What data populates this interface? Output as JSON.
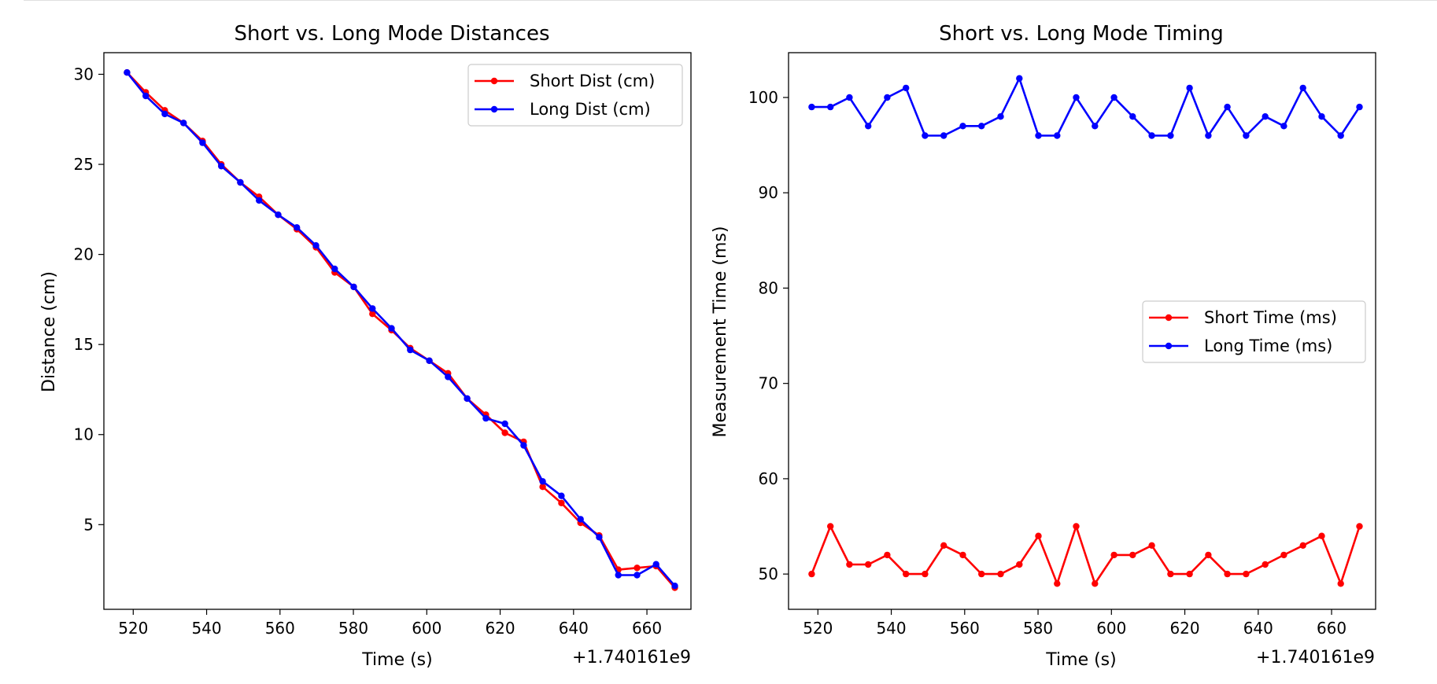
{
  "chart_data": [
    {
      "type": "line",
      "title": "Short vs. Long Mode Distances",
      "xlabel": "Time (s)",
      "ylabel": "Distance (cm)",
      "x_offset_label": "+1.740161e9",
      "xlim": [
        512,
        672
      ],
      "ylim": [
        0.3,
        31.2
      ],
      "xticks": [
        520,
        540,
        560,
        580,
        600,
        620,
        640,
        660
      ],
      "yticks": [
        5,
        10,
        15,
        20,
        25,
        30
      ],
      "legend": "top-right",
      "x": [
        518.3,
        523.4,
        528.6,
        533.7,
        538.9,
        544.0,
        549.2,
        554.3,
        559.5,
        564.6,
        569.8,
        574.9,
        580.1,
        585.2,
        590.4,
        595.5,
        600.7,
        605.8,
        611.0,
        616.1,
        621.3,
        626.4,
        631.6,
        636.7,
        641.9,
        647.0,
        652.2,
        657.3,
        662.5,
        667.6
      ],
      "series": [
        {
          "name": "Short Dist (cm)",
          "color": "#ff0000",
          "values": [
            30.1,
            29.0,
            28.0,
            27.3,
            26.3,
            25.0,
            24.0,
            23.2,
            22.2,
            21.4,
            20.4,
            19.0,
            18.2,
            16.7,
            15.8,
            14.8,
            14.1,
            13.4,
            12.0,
            11.1,
            10.1,
            9.6,
            7.1,
            6.2,
            5.1,
            4.4,
            2.5,
            2.6,
            2.7,
            1.5
          ]
        },
        {
          "name": "Long Dist (cm)",
          "color": "#0000ff",
          "values": [
            30.1,
            28.8,
            27.8,
            27.3,
            26.2,
            24.9,
            24.0,
            23.0,
            22.2,
            21.5,
            20.5,
            19.2,
            18.2,
            17.0,
            15.9,
            14.7,
            14.1,
            13.2,
            12.0,
            10.9,
            10.6,
            9.4,
            7.4,
            6.6,
            5.3,
            4.3,
            2.2,
            2.2,
            2.8,
            1.6
          ]
        }
      ]
    },
    {
      "type": "line",
      "title": "Short vs. Long Mode Timing",
      "xlabel": "Time (s)",
      "ylabel": "Measurement Time (ms)",
      "x_offset_label": "+1.740161e9",
      "xlim": [
        512,
        672
      ],
      "ylim": [
        46.3,
        104.7
      ],
      "xticks": [
        520,
        540,
        560,
        580,
        600,
        620,
        640,
        660
      ],
      "yticks": [
        50,
        60,
        70,
        80,
        90,
        100
      ],
      "legend": "center-right",
      "x": [
        518.3,
        523.4,
        528.6,
        533.7,
        538.9,
        544.0,
        549.2,
        554.3,
        559.5,
        564.6,
        569.8,
        574.9,
        580.1,
        585.2,
        590.4,
        595.5,
        600.7,
        605.8,
        611.0,
        616.1,
        621.3,
        626.4,
        631.6,
        636.7,
        641.9,
        647.0,
        652.2,
        657.3,
        662.5,
        667.6
      ],
      "series": [
        {
          "name": "Short Time (ms)",
          "color": "#ff0000",
          "values": [
            50,
            55,
            51,
            51,
            52,
            50,
            50,
            53,
            52,
            50,
            50,
            51,
            54,
            49,
            55,
            49,
            52,
            52,
            53,
            50,
            50,
            52,
            50,
            50,
            51,
            52,
            53,
            54,
            49,
            55
          ]
        },
        {
          "name": "Long Time (ms)",
          "color": "#0000ff",
          "values": [
            99,
            99,
            100,
            97,
            100,
            101,
            96,
            96,
            97,
            97,
            98,
            102,
            96,
            96,
            100,
            97,
            100,
            98,
            96,
            96,
            101,
            96,
            99,
            96,
            98,
            97,
            101,
            98,
            96,
            99
          ]
        }
      ]
    }
  ]
}
